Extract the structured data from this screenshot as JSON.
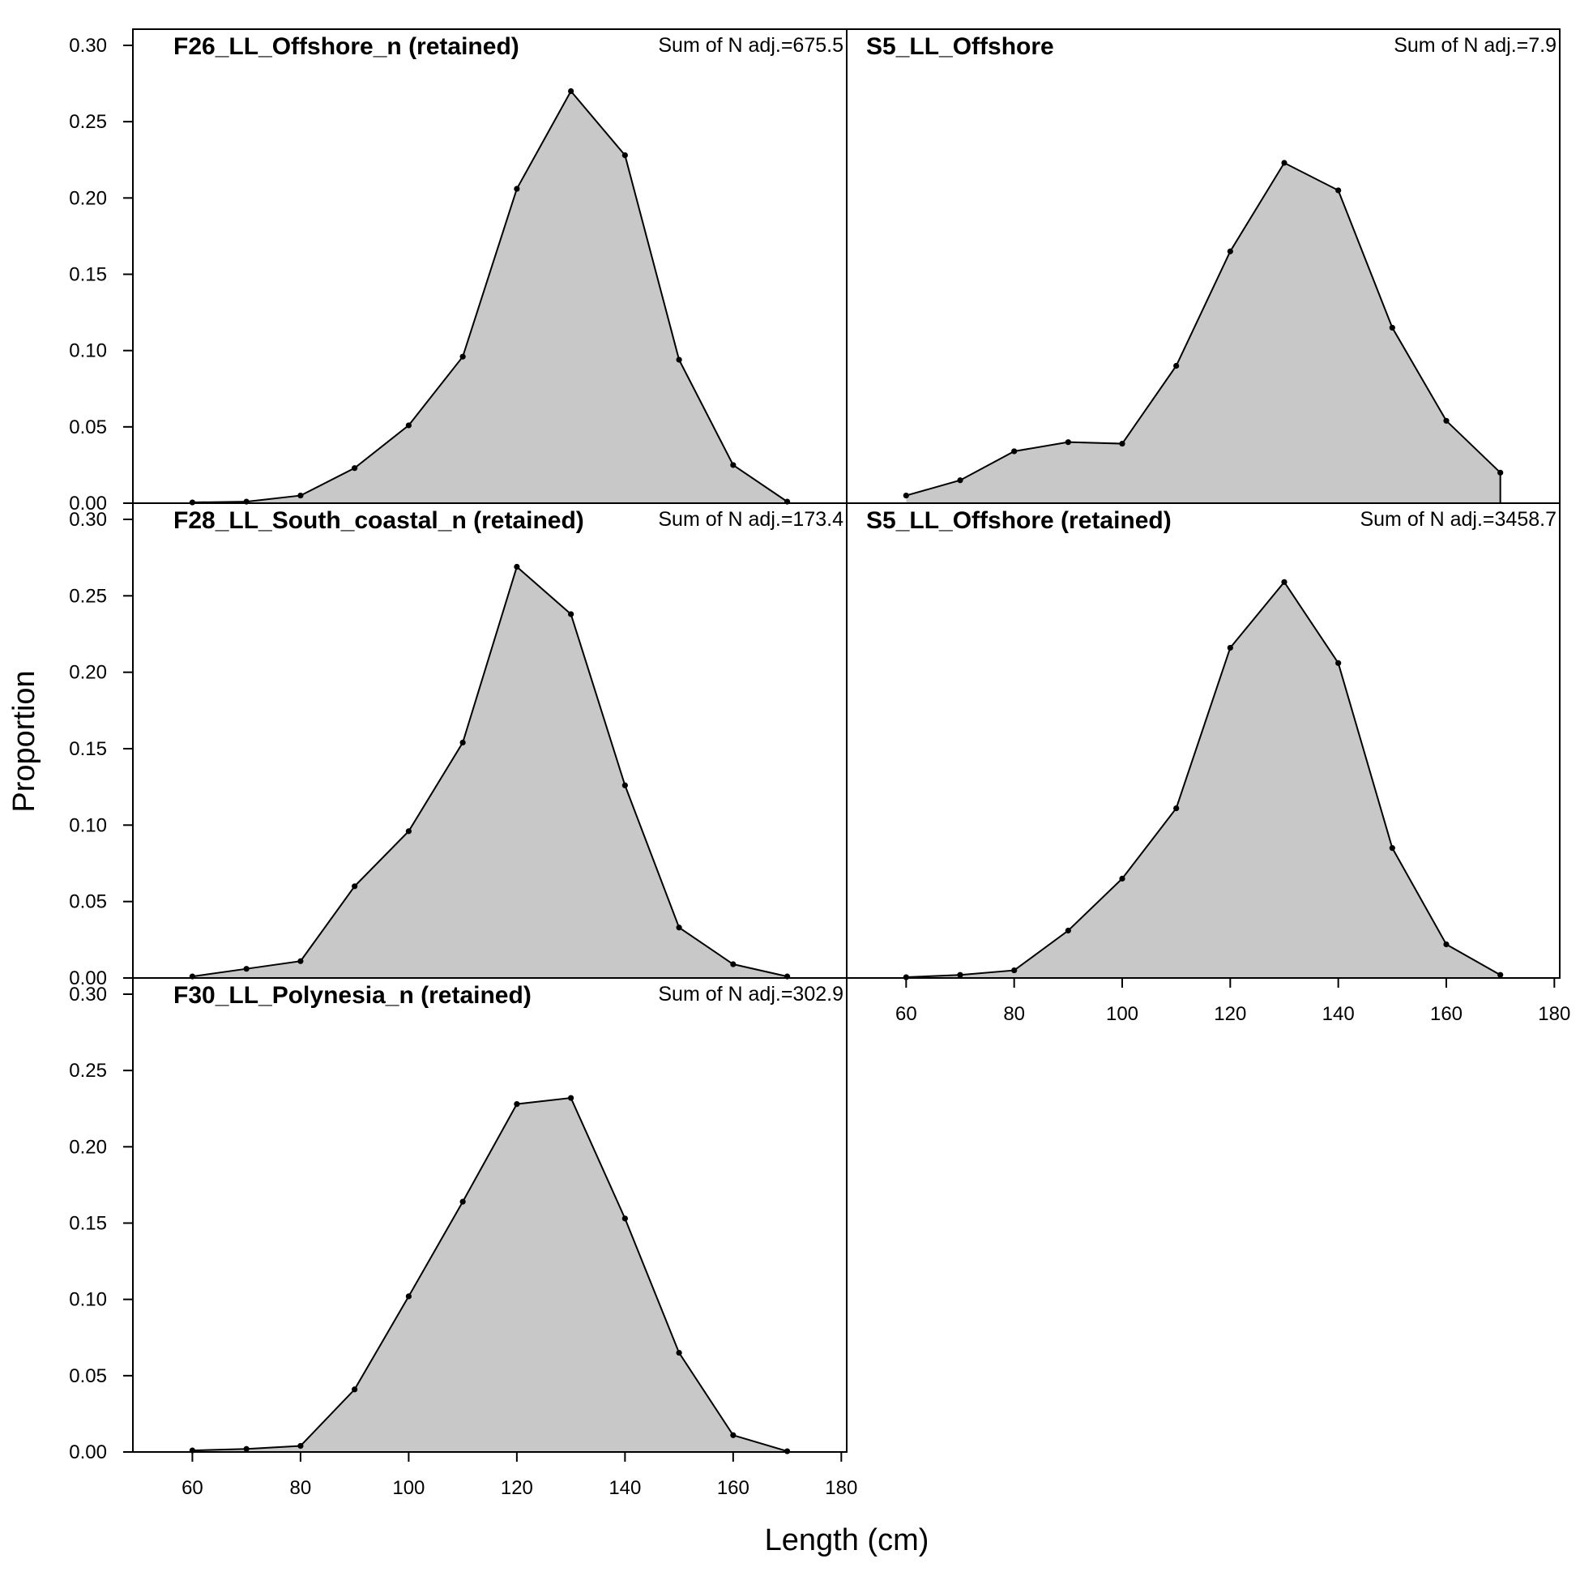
{
  "figure": {
    "xlabel": "Length (cm)",
    "ylabel": "Proportion",
    "fill_color": "#c8c8c8",
    "line_color": "#000000",
    "x_ticks": [
      60,
      80,
      100,
      120,
      140,
      160,
      180
    ],
    "y_ticks": [
      0.0,
      0.05,
      0.1,
      0.15,
      0.2,
      0.25,
      0.3
    ],
    "y_tick_labels": [
      "0.00",
      "0.05",
      "0.10",
      "0.15",
      "0.20",
      "0.25",
      "0.30"
    ],
    "xlim": [
      49,
      181
    ],
    "ylim": [
      0,
      0.31
    ]
  },
  "chart_data": [
    {
      "type": "area",
      "title": "F26_LL_Offshore_n (retained)",
      "annotation": "Sum of N adj.=675.5",
      "x": [
        60,
        70,
        80,
        90,
        100,
        110,
        120,
        130,
        140,
        150,
        160,
        170
      ],
      "y": [
        0.0005,
        0.001,
        0.005,
        0.023,
        0.051,
        0.096,
        0.206,
        0.27,
        0.228,
        0.094,
        0.025,
        0.001
      ],
      "xlabel": "Length (cm)",
      "ylabel": "Proportion",
      "xlim": [
        49,
        181
      ],
      "ylim": [
        0,
        0.31
      ]
    },
    {
      "type": "area",
      "title": "S5_LL_Offshore",
      "annotation": "Sum of N adj.=7.9",
      "x": [
        60,
        70,
        80,
        90,
        100,
        110,
        120,
        130,
        140,
        150,
        160,
        170
      ],
      "y": [
        0.005,
        0.015,
        0.034,
        0.04,
        0.039,
        0.09,
        0.165,
        0.223,
        0.205,
        0.115,
        0.054,
        0.02
      ],
      "xlabel": "Length (cm)",
      "ylabel": "Proportion",
      "xlim": [
        49,
        181
      ],
      "ylim": [
        0,
        0.31
      ]
    },
    {
      "type": "area",
      "title": "F28_LL_South_coastal_n (retained)",
      "annotation": "Sum of N adj.=173.4",
      "x": [
        60,
        70,
        80,
        90,
        100,
        110,
        120,
        130,
        140,
        150,
        160,
        170
      ],
      "y": [
        0.001,
        0.006,
        0.011,
        0.06,
        0.096,
        0.154,
        0.269,
        0.238,
        0.126,
        0.033,
        0.009,
        0.001
      ],
      "xlabel": "Length (cm)",
      "ylabel": "Proportion",
      "xlim": [
        49,
        181
      ],
      "ylim": [
        0,
        0.31
      ]
    },
    {
      "type": "area",
      "title": "S5_LL_Offshore (retained)",
      "annotation": "Sum of N adj.=3458.7",
      "x": [
        60,
        70,
        80,
        90,
        100,
        110,
        120,
        130,
        140,
        150,
        160,
        170
      ],
      "y": [
        0.0005,
        0.002,
        0.005,
        0.031,
        0.065,
        0.111,
        0.216,
        0.259,
        0.206,
        0.085,
        0.022,
        0.002
      ],
      "xlabel": "Length (cm)",
      "ylabel": "Proportion",
      "xlim": [
        49,
        181
      ],
      "ylim": [
        0,
        0.31
      ]
    },
    {
      "type": "area",
      "title": "F30_LL_Polynesia_n (retained)",
      "annotation": "Sum of N adj.=302.9",
      "x": [
        60,
        70,
        80,
        90,
        100,
        110,
        120,
        130,
        140,
        150,
        160,
        170
      ],
      "y": [
        0.001,
        0.002,
        0.004,
        0.041,
        0.102,
        0.164,
        0.228,
        0.232,
        0.153,
        0.065,
        0.011,
        0.0005
      ],
      "xlabel": "Length (cm)",
      "ylabel": "Proportion",
      "xlim": [
        49,
        181
      ],
      "ylim": [
        0,
        0.31
      ]
    }
  ]
}
